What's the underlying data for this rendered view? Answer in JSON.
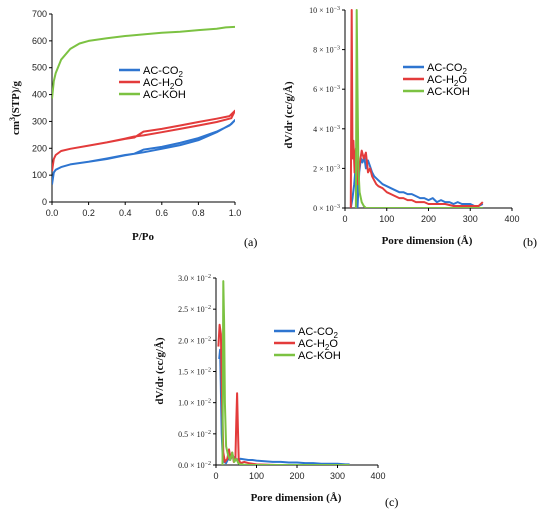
{
  "colors": {
    "CO2": "#2e75d0",
    "H2O": "#e33b3b",
    "KOH": "#7cc242"
  },
  "panels": {
    "a": {
      "label": "(a)",
      "xlabel": "P/Po",
      "ylabel_parts": [
        "cm",
        "3",
        "(STP)/g"
      ],
      "xticks": [
        "0.0",
        "0.2",
        "0.4",
        "0.6",
        "0.8",
        "1.0"
      ],
      "yticks": [
        "0",
        "100",
        "200",
        "300",
        "400",
        "500",
        "600",
        "700"
      ]
    },
    "b": {
      "label": "(b)",
      "xlabel": "Pore dimension (Å)",
      "ylabel": "dV/dr (cc/g/Å)",
      "xticks": [
        "0",
        "100",
        "200",
        "300",
        "400"
      ],
      "yticks": [
        {
          "m": "0",
          "e": "−3"
        },
        {
          "m": "2",
          "e": "−3"
        },
        {
          "m": "4",
          "e": "−3"
        },
        {
          "m": "6",
          "e": "−3"
        },
        {
          "m": "8",
          "e": "−3"
        },
        {
          "m": "10",
          "e": "−3"
        }
      ]
    },
    "c": {
      "label": "(c)",
      "xlabel": "Pore dimension (Å)",
      "ylabel": "dV/dr (cc/g/Å)",
      "xticks": [
        "0",
        "100",
        "200",
        "300",
        "400"
      ],
      "yticks": [
        {
          "m": "0.0",
          "e": "−2"
        },
        {
          "m": "0.5",
          "e": "−2"
        },
        {
          "m": "1.0",
          "e": "−2"
        },
        {
          "m": "1.5",
          "e": "−2"
        },
        {
          "m": "2.0",
          "e": "−2"
        },
        {
          "m": "2.5",
          "e": "−2"
        },
        {
          "m": "3.0",
          "e": "−2"
        }
      ]
    }
  },
  "legend": [
    {
      "key": "CO2",
      "pre": "AC-CO",
      "sub": "2",
      "post": ""
    },
    {
      "key": "H2O",
      "pre": "AC-H",
      "sub": "2",
      "post": "O"
    },
    {
      "key": "KOH",
      "pre": "AC-KOH",
      "sub": "",
      "post": ""
    }
  ],
  "chart_data": [
    {
      "type": "line",
      "xlabel": "P/Po",
      "ylabel": "cm3(STP)/g",
      "xlim": [
        0,
        1.0
      ],
      "ylim": [
        0,
        700
      ],
      "series": [
        {
          "name": "AC-KOH",
          "points": [
            [
              0.0,
              385
            ],
            [
              0.01,
              450
            ],
            [
              0.02,
              480
            ],
            [
              0.05,
              530
            ],
            [
              0.1,
              570
            ],
            [
              0.15,
              590
            ],
            [
              0.2,
              600
            ],
            [
              0.3,
              610
            ],
            [
              0.4,
              618
            ],
            [
              0.5,
              624
            ],
            [
              0.6,
              630
            ],
            [
              0.7,
              634
            ],
            [
              0.8,
              640
            ],
            [
              0.9,
              645
            ],
            [
              0.95,
              650
            ],
            [
              1.0,
              652
            ]
          ]
        },
        {
          "name": "AC-H2O",
          "points": [
            [
              0.0,
              115
            ],
            [
              0.01,
              160
            ],
            [
              0.02,
              175
            ],
            [
              0.05,
              190
            ],
            [
              0.1,
              198
            ],
            [
              0.2,
              210
            ],
            [
              0.3,
              222
            ],
            [
              0.4,
              235
            ],
            [
              0.45,
              240
            ],
            [
              0.5,
              262
            ],
            [
              0.6,
              272
            ],
            [
              0.7,
              285
            ],
            [
              0.8,
              298
            ],
            [
              0.9,
              310
            ],
            [
              0.97,
              320
            ],
            [
              1.0,
              340
            ],
            [
              0.98,
              312
            ],
            [
              0.9,
              298
            ],
            [
              0.8,
              285
            ],
            [
              0.7,
              272
            ],
            [
              0.6,
              260
            ],
            [
              0.5,
              248
            ],
            [
              0.45,
              244
            ],
            [
              0.4,
              236
            ],
            [
              0.3,
              222
            ],
            [
              0.2,
              210
            ],
            [
              0.1,
              198
            ],
            [
              0.05,
              190
            ]
          ]
        },
        {
          "name": "AC-CO2",
          "points": [
            [
              0.0,
              65
            ],
            [
              0.01,
              110
            ],
            [
              0.02,
              120
            ],
            [
              0.05,
              130
            ],
            [
              0.1,
              140
            ],
            [
              0.2,
              150
            ],
            [
              0.3,
              162
            ],
            [
              0.4,
              175
            ],
            [
              0.45,
              180
            ],
            [
              0.5,
              195
            ],
            [
              0.6,
              205
            ],
            [
              0.7,
              220
            ],
            [
              0.8,
              238
            ],
            [
              0.9,
              262
            ],
            [
              0.97,
              285
            ],
            [
              1.0,
              305
            ],
            [
              0.98,
              290
            ],
            [
              0.9,
              260
            ],
            [
              0.8,
              230
            ],
            [
              0.7,
              212
            ],
            [
              0.6,
              198
            ],
            [
              0.5,
              185
            ],
            [
              0.45,
              180
            ],
            [
              0.4,
              174
            ],
            [
              0.3,
              160
            ],
            [
              0.2,
              150
            ],
            [
              0.1,
              140
            ],
            [
              0.05,
              130
            ]
          ]
        }
      ]
    },
    {
      "type": "line",
      "xlabel": "Pore dimension (Å)",
      "ylabel": "dV/dr (cc/g/Å)",
      "xlim": [
        0,
        400
      ],
      "ylim": [
        0,
        0.01
      ],
      "series": [
        {
          "name": "AC-CO2",
          "points": [
            [
              14,
              0.0
            ],
            [
              18,
              0.0005
            ],
            [
              22,
              0.0012
            ],
            [
              26,
              0.0022
            ],
            [
              30,
              0.0
            ],
            [
              34,
              0.0018
            ],
            [
              38,
              0.0025
            ],
            [
              42,
              0.0023
            ],
            [
              46,
              0.0026
            ],
            [
              50,
              0.002
            ],
            [
              55,
              0.0024
            ],
            [
              60,
              0.0021
            ],
            [
              65,
              0.0018
            ],
            [
              70,
              0.0016
            ],
            [
              75,
              0.0015
            ],
            [
              80,
              0.0014
            ],
            [
              90,
              0.0012
            ],
            [
              100,
              0.0011
            ],
            [
              110,
              0.001
            ],
            [
              120,
              0.0009
            ],
            [
              130,
              0.0008
            ],
            [
              140,
              0.0008
            ],
            [
              150,
              0.0007
            ],
            [
              160,
              0.0007
            ],
            [
              170,
              0.0006
            ],
            [
              180,
              0.0005
            ],
            [
              190,
              0.0005
            ],
            [
              200,
              0.0004
            ],
            [
              210,
              0.0005
            ],
            [
              220,
              0.0003
            ],
            [
              230,
              0.0004
            ],
            [
              240,
              0.0003
            ],
            [
              250,
              0.0003
            ],
            [
              260,
              0.0002
            ],
            [
              270,
              0.0003
            ],
            [
              280,
              0.0002
            ],
            [
              290,
              0.0002
            ],
            [
              300,
              0.0002
            ],
            [
              310,
              0.0001
            ],
            [
              320,
              0.0001
            ],
            [
              330,
              0.0002
            ]
          ]
        },
        {
          "name": "AC-H2O",
          "points": [
            [
              14,
              0.0
            ],
            [
              16,
              0.01
            ],
            [
              18,
              0.0025
            ],
            [
              20,
              0.0034
            ],
            [
              23,
              0.0018
            ],
            [
              26,
              0.003
            ],
            [
              30,
              0.0012
            ],
            [
              35,
              0.0022
            ],
            [
              40,
              0.0029
            ],
            [
              45,
              0.0025
            ],
            [
              50,
              0.0028
            ],
            [
              55,
              0.0018
            ],
            [
              60,
              0.002
            ],
            [
              65,
              0.0016
            ],
            [
              70,
              0.0014
            ],
            [
              75,
              0.0012
            ],
            [
              80,
              0.0011
            ],
            [
              90,
              0.001
            ],
            [
              100,
              0.0008
            ],
            [
              110,
              0.0007
            ],
            [
              120,
              0.0006
            ],
            [
              130,
              0.0005
            ],
            [
              140,
              0.0005
            ],
            [
              150,
              0.0004
            ],
            [
              160,
              0.0004
            ],
            [
              170,
              0.0003
            ],
            [
              180,
              0.0003
            ],
            [
              190,
              0.0003
            ],
            [
              200,
              0.0002
            ],
            [
              220,
              0.0002
            ],
            [
              240,
              0.0002
            ],
            [
              260,
              0.0001
            ],
            [
              280,
              0.0001
            ],
            [
              300,
              0.0001
            ],
            [
              320,
              0.0001
            ],
            [
              330,
              0.0003
            ]
          ]
        },
        {
          "name": "AC-KOH",
          "points": [
            [
              26,
              0.0
            ],
            [
              28,
              0.01
            ],
            [
              30,
              0.006
            ],
            [
              32,
              0.002
            ],
            [
              35,
              0.0008
            ],
            [
              40,
              0.0003
            ],
            [
              45,
              0.0001
            ],
            [
              50,
              0.0
            ],
            [
              60,
              0.0
            ],
            [
              80,
              0.0
            ],
            [
              100,
              0.0
            ],
            [
              150,
              0.0
            ],
            [
              200,
              0.0
            ],
            [
              250,
              0.0
            ],
            [
              300,
              0.0
            ],
            [
              330,
              0.0
            ]
          ]
        }
      ]
    },
    {
      "type": "line",
      "xlabel": "Pore dimension (Å)",
      "ylabel": "dV/dr (cc/g/Å)",
      "xlim": [
        0,
        400
      ],
      "ylim": [
        0,
        0.03
      ],
      "series": [
        {
          "name": "AC-CO2",
          "points": [
            [
              8,
              0.017
            ],
            [
              10,
              0.0185
            ],
            [
              12,
              0.012
            ],
            [
              14,
              0.005
            ],
            [
              16,
              0.002
            ],
            [
              20,
              0.0005
            ],
            [
              25,
              0.0003
            ],
            [
              30,
              0.001
            ],
            [
              35,
              0.0008
            ],
            [
              40,
              0.0015
            ],
            [
              45,
              0.0012
            ],
            [
              50,
              0.001
            ],
            [
              55,
              0.0008
            ],
            [
              60,
              0.001
            ],
            [
              70,
              0.0009
            ],
            [
              80,
              0.0008
            ],
            [
              90,
              0.0008
            ],
            [
              100,
              0.0007
            ],
            [
              120,
              0.0006
            ],
            [
              140,
              0.0005
            ],
            [
              160,
              0.0005
            ],
            [
              180,
              0.0004
            ],
            [
              200,
              0.0004
            ],
            [
              220,
              0.0003
            ],
            [
              240,
              0.0003
            ],
            [
              260,
              0.0002
            ],
            [
              280,
              0.0002
            ],
            [
              300,
              0.0002
            ],
            [
              320,
              0.0001
            ],
            [
              330,
              0.0001
            ]
          ]
        },
        {
          "name": "AC-H2O",
          "points": [
            [
              6,
              0.019
            ],
            [
              9,
              0.0225
            ],
            [
              12,
              0.021
            ],
            [
              15,
              0.01
            ],
            [
              18,
              0.002
            ],
            [
              22,
              0.0005
            ],
            [
              28,
              0.001
            ],
            [
              32,
              0.0025
            ],
            [
              36,
              0.001
            ],
            [
              40,
              0.002
            ],
            [
              44,
              0.0005
            ],
            [
              48,
              0.001
            ],
            [
              50,
              0.007
            ],
            [
              52,
              0.0115
            ],
            [
              54,
              0.006
            ],
            [
              56,
              0.001
            ],
            [
              60,
              0.0003
            ],
            [
              70,
              0.0005
            ],
            [
              80,
              0.0003
            ],
            [
              100,
              0.0001
            ],
            [
              150,
              0.0
            ],
            [
              200,
              0.0
            ],
            [
              250,
              0.0
            ],
            [
              300,
              0.0
            ]
          ]
        },
        {
          "name": "AC-KOH",
          "points": [
            [
              16,
              0.0
            ],
            [
              18,
              0.0295
            ],
            [
              20,
              0.023
            ],
            [
              22,
              0.01
            ],
            [
              25,
              0.003
            ],
            [
              30,
              0.0015
            ],
            [
              35,
              0.0008
            ],
            [
              40,
              0.002
            ],
            [
              45,
              0.0005
            ],
            [
              50,
              0.001
            ],
            [
              55,
              0.0003
            ],
            [
              60,
              0.0001
            ],
            [
              80,
              0.0
            ],
            [
              100,
              0.0
            ],
            [
              150,
              0.0
            ],
            [
              200,
              0.0
            ],
            [
              250,
              0.0
            ],
            [
              300,
              0.0
            ],
            [
              330,
              0.0
            ]
          ]
        }
      ]
    }
  ]
}
